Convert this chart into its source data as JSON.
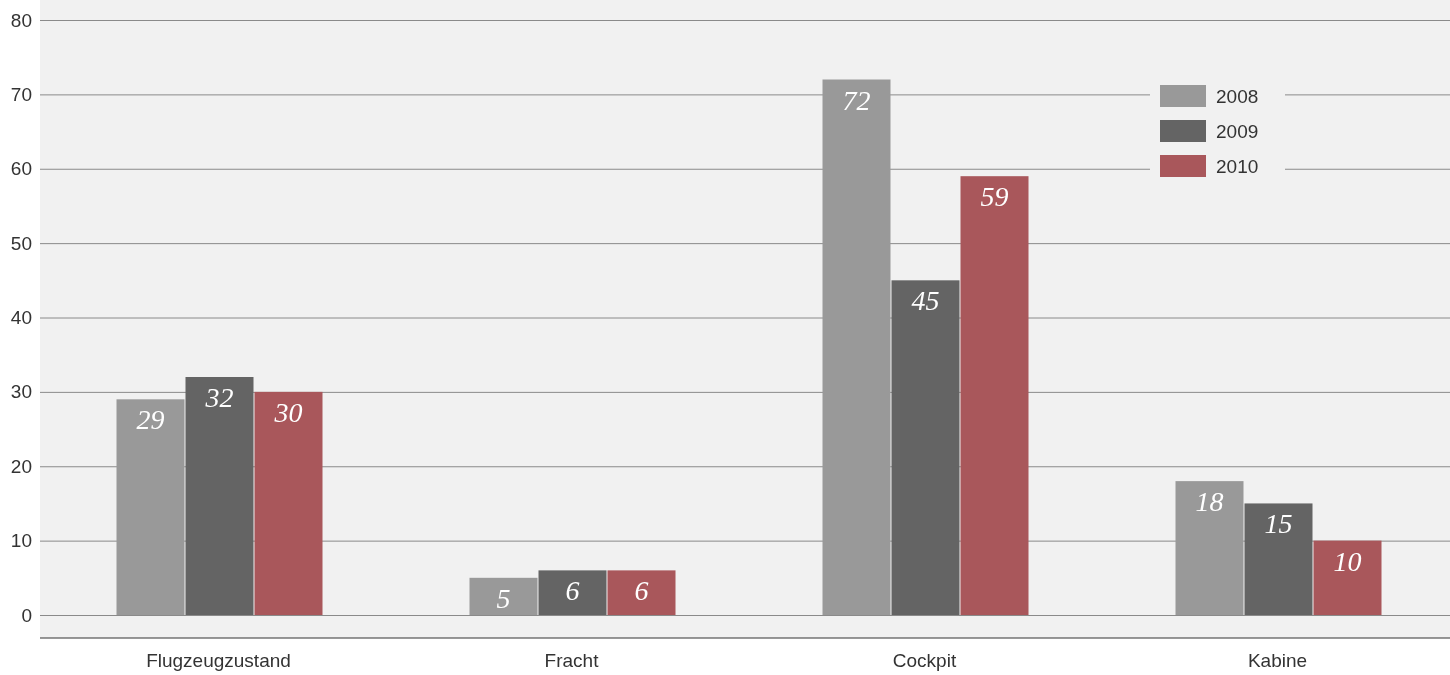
{
  "chart_data": {
    "type": "bar",
    "categories": [
      "Flugzeugzustand",
      "Fracht",
      "Cockpit",
      "Kabine"
    ],
    "series": [
      {
        "name": "2008",
        "color": "#999999",
        "values": [
          29,
          5,
          72,
          18
        ]
      },
      {
        "name": "2009",
        "color": "#646464",
        "values": [
          32,
          6,
          45,
          15
        ]
      },
      {
        "name": "2010",
        "color": "#a9575b",
        "values": [
          30,
          6,
          59,
          10
        ]
      }
    ],
    "ylim": [
      0,
      80
    ],
    "yticks": [
      0,
      10,
      20,
      30,
      40,
      50,
      60,
      70,
      80
    ],
    "grid": "y",
    "legend": "top right",
    "data_labels": true
  }
}
